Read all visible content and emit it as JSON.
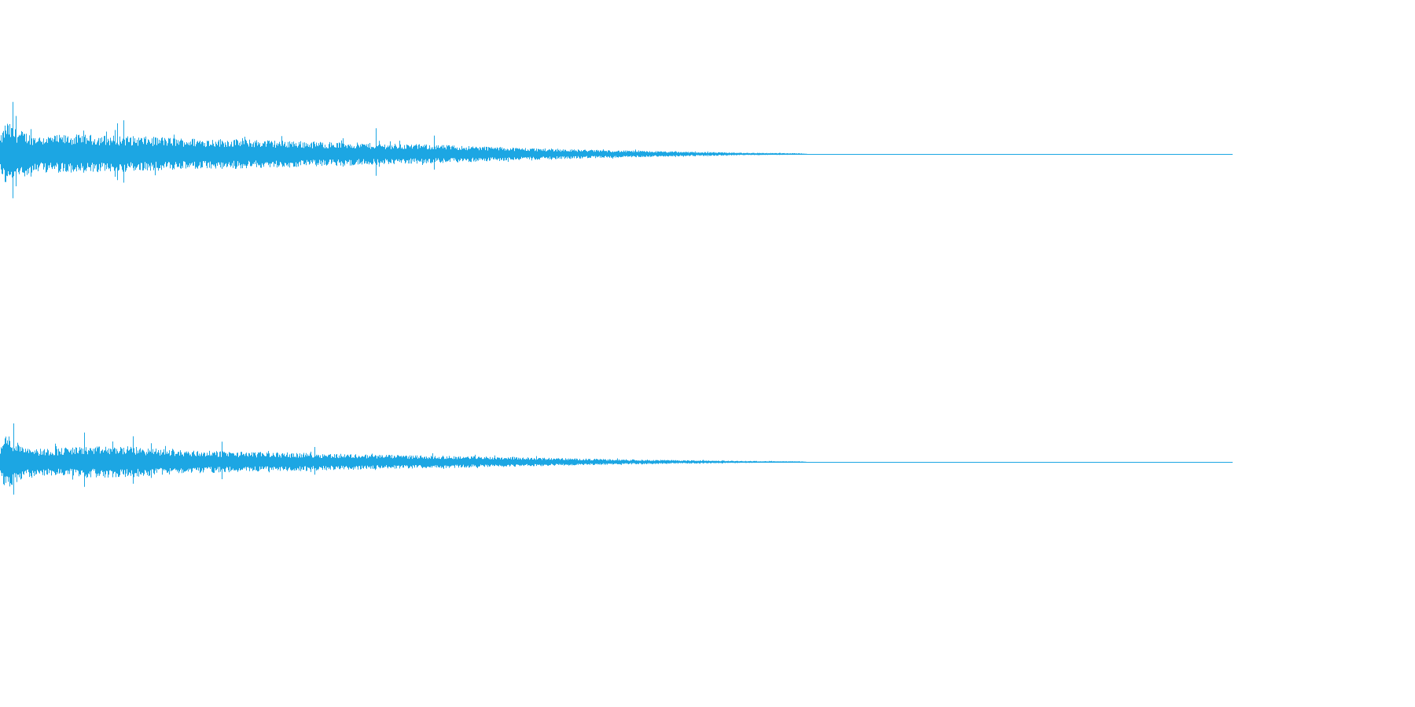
{
  "chart_data": {
    "type": "area",
    "title": "",
    "xlabel": "",
    "ylabel": "",
    "grid": false,
    "legend": "none",
    "color": "#1ca6e3",
    "x_range": [
      0,
      1
    ],
    "y_range": [
      -1,
      1
    ],
    "channels": [
      {
        "envelope": {
          "x": [
            0.0,
            0.005,
            0.012,
            0.03,
            0.06,
            0.1,
            0.15,
            0.2,
            0.25,
            0.3,
            0.35,
            0.4,
            0.45,
            0.5,
            0.55,
            0.6,
            0.65,
            0.655,
            1.0
          ],
          "y": [
            0.25,
            0.55,
            0.42,
            0.3,
            0.32,
            0.3,
            0.26,
            0.24,
            0.21,
            0.18,
            0.155,
            0.12,
            0.085,
            0.06,
            0.04,
            0.022,
            0.012,
            0.0,
            0.0
          ]
        },
        "spikes": [
          {
            "x": 0.01,
            "y": 0.85
          },
          {
            "x": 0.013,
            "y": 0.62
          },
          {
            "x": 0.095,
            "y": 0.5
          },
          {
            "x": 0.1,
            "y": 0.55
          },
          {
            "x": 0.305,
            "y": 0.42
          },
          {
            "x": 0.352,
            "y": 0.3
          }
        ]
      },
      {
        "envelope": {
          "x": [
            0.0,
            0.005,
            0.012,
            0.03,
            0.06,
            0.1,
            0.15,
            0.2,
            0.25,
            0.3,
            0.35,
            0.4,
            0.45,
            0.5,
            0.55,
            0.6,
            0.65,
            0.655,
            1.0
          ],
          "y": [
            0.25,
            0.55,
            0.4,
            0.25,
            0.28,
            0.3,
            0.22,
            0.19,
            0.17,
            0.14,
            0.12,
            0.1,
            0.075,
            0.05,
            0.035,
            0.02,
            0.01,
            0.0,
            0.0
          ]
        },
        "spikes": [
          {
            "x": 0.011,
            "y": 0.72
          },
          {
            "x": 0.068,
            "y": 0.55
          },
          {
            "x": 0.108,
            "y": 0.48
          },
          {
            "x": 0.18,
            "y": 0.38
          },
          {
            "x": 0.255,
            "y": 0.28
          }
        ]
      }
    ]
  }
}
